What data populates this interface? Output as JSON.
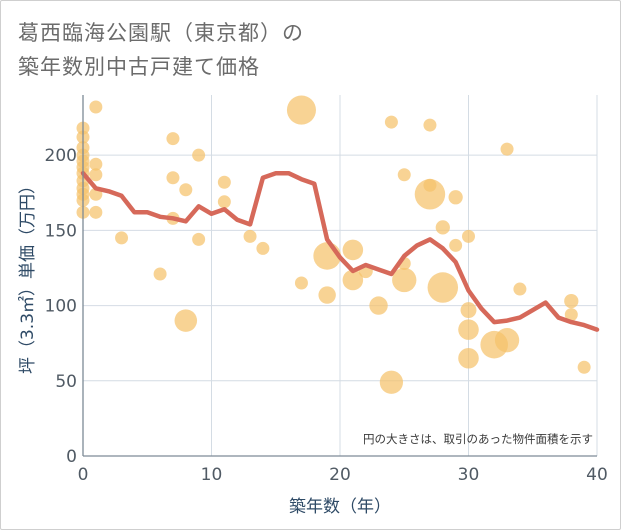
{
  "title_lines": [
    "葛西臨海公園駅（東京都）の",
    "築年数別中古戸建て価格"
  ],
  "colors": {
    "bubble": "#f5c26b",
    "line": "#d6695a",
    "grid": "#d4dce4",
    "axis": "#7d8a96"
  },
  "chart_data": {
    "type": "scatter",
    "title": "葛西臨海公園駅（東京都）の築年数別中古戸建て価格",
    "xlabel": "築年数（年）",
    "ylabel": "坪（3.3㎡）単価（万円）",
    "xlim": [
      0,
      40
    ],
    "ylim": [
      0,
      240
    ],
    "x_ticks": [
      0,
      10,
      20,
      30,
      40
    ],
    "y_ticks": [
      0,
      50,
      100,
      150,
      200
    ],
    "grid": true,
    "annotation": "円の大きさは、取引のあった物件面積を示す",
    "bubbles": [
      {
        "x": 0,
        "y": 218,
        "s": 1
      },
      {
        "x": 0,
        "y": 212,
        "s": 1
      },
      {
        "x": 0,
        "y": 205,
        "s": 1
      },
      {
        "x": 0,
        "y": 200,
        "s": 1
      },
      {
        "x": 0,
        "y": 196,
        "s": 1
      },
      {
        "x": 0,
        "y": 192,
        "s": 1
      },
      {
        "x": 0,
        "y": 188,
        "s": 1
      },
      {
        "x": 0,
        "y": 183,
        "s": 1
      },
      {
        "x": 0,
        "y": 178,
        "s": 1
      },
      {
        "x": 0,
        "y": 174,
        "s": 1
      },
      {
        "x": 0,
        "y": 170,
        "s": 1
      },
      {
        "x": 0,
        "y": 162,
        "s": 1
      },
      {
        "x": 1,
        "y": 232,
        "s": 1
      },
      {
        "x": 1,
        "y": 194,
        "s": 1
      },
      {
        "x": 1,
        "y": 187,
        "s": 1
      },
      {
        "x": 1,
        "y": 174,
        "s": 1
      },
      {
        "x": 1,
        "y": 162,
        "s": 1
      },
      {
        "x": 3,
        "y": 145,
        "s": 1
      },
      {
        "x": 6,
        "y": 121,
        "s": 1
      },
      {
        "x": 7,
        "y": 211,
        "s": 1
      },
      {
        "x": 7,
        "y": 185,
        "s": 1
      },
      {
        "x": 7,
        "y": 158,
        "s": 1
      },
      {
        "x": 8,
        "y": 177,
        "s": 1
      },
      {
        "x": 8,
        "y": 90,
        "s": 3
      },
      {
        "x": 9,
        "y": 200,
        "s": 1
      },
      {
        "x": 9,
        "y": 144,
        "s": 1
      },
      {
        "x": 11,
        "y": 182,
        "s": 1
      },
      {
        "x": 11,
        "y": 169,
        "s": 1
      },
      {
        "x": 13,
        "y": 146,
        "s": 1
      },
      {
        "x": 14,
        "y": 138,
        "s": 1
      },
      {
        "x": 17,
        "y": 230,
        "s": 5
      },
      {
        "x": 17,
        "y": 115,
        "s": 1
      },
      {
        "x": 19,
        "y": 133,
        "s": 4.5
      },
      {
        "x": 19,
        "y": 107,
        "s": 1.8
      },
      {
        "x": 21,
        "y": 137,
        "s": 2.5
      },
      {
        "x": 21,
        "y": 117,
        "s": 2.5
      },
      {
        "x": 22,
        "y": 123,
        "s": 1.2
      },
      {
        "x": 23,
        "y": 100,
        "s": 2
      },
      {
        "x": 24,
        "y": 222,
        "s": 1
      },
      {
        "x": 24,
        "y": 49,
        "s": 3.2
      },
      {
        "x": 25,
        "y": 187,
        "s": 1
      },
      {
        "x": 25,
        "y": 128,
        "s": 1
      },
      {
        "x": 25,
        "y": 117,
        "s": 3.5
      },
      {
        "x": 27,
        "y": 220,
        "s": 1
      },
      {
        "x": 27,
        "y": 174,
        "s": 5.5
      },
      {
        "x": 27,
        "y": 180,
        "s": 1
      },
      {
        "x": 28,
        "y": 152,
        "s": 1.2
      },
      {
        "x": 28,
        "y": 112,
        "s": 5.5
      },
      {
        "x": 29,
        "y": 172,
        "s": 1.2
      },
      {
        "x": 29,
        "y": 140,
        "s": 1
      },
      {
        "x": 30,
        "y": 146,
        "s": 1
      },
      {
        "x": 30,
        "y": 97,
        "s": 1.5
      },
      {
        "x": 30,
        "y": 84,
        "s": 2.5
      },
      {
        "x": 30,
        "y": 65,
        "s": 2.5
      },
      {
        "x": 32,
        "y": 74,
        "s": 4.5
      },
      {
        "x": 33,
        "y": 77,
        "s": 3.5
      },
      {
        "x": 33,
        "y": 204,
        "s": 1
      },
      {
        "x": 34,
        "y": 111,
        "s": 1
      },
      {
        "x": 38,
        "y": 103,
        "s": 1.2
      },
      {
        "x": 38,
        "y": 94,
        "s": 1
      },
      {
        "x": 39,
        "y": 59,
        "s": 1
      }
    ],
    "trend": {
      "x": [
        0,
        1,
        2,
        3,
        4,
        5,
        6,
        7,
        8,
        9,
        10,
        11,
        12,
        13,
        14,
        15,
        16,
        17,
        18,
        19,
        20,
        21,
        22,
        23,
        24,
        25,
        26,
        27,
        28,
        29,
        30,
        31,
        32,
        33,
        34,
        35,
        36,
        37,
        38,
        39,
        40
      ],
      "y": [
        188,
        178,
        176,
        173,
        162,
        162,
        159,
        158,
        156,
        166,
        161,
        164,
        157,
        154,
        185,
        188,
        188,
        184,
        181,
        144,
        132,
        123,
        127,
        124,
        121,
        133,
        140,
        144,
        138,
        129,
        110,
        98,
        89,
        90,
        92,
        97,
        102,
        92,
        89,
        87,
        84
      ]
    }
  }
}
